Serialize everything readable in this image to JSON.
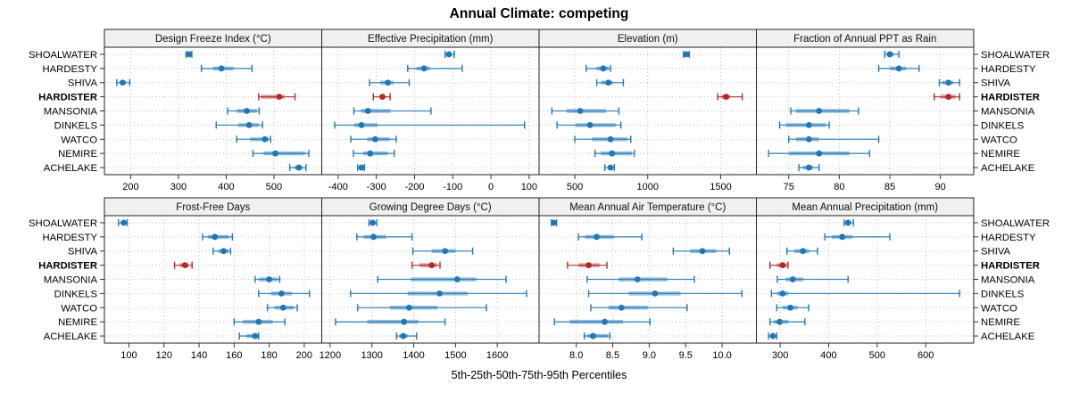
{
  "title": "Annual Climate: competing",
  "caption": "5th-25th-50th-75th-95th Percentiles",
  "sites": [
    "SHOALWATER",
    "HARDESTY",
    "SHIVA",
    "HARDISTER",
    "MANSONIA",
    "DINKELS",
    "WATCO",
    "NEMIRE",
    "ACHELAKE"
  ],
  "highlight_site": "HARDISTER",
  "colors": {
    "series_default": "#1f77b4",
    "series_highlight": "#b22822",
    "strip_bg": "#f0f0f0",
    "panel_border": "#222222",
    "grid": "#bdbdbd",
    "tick": "#333333",
    "text": "#000000"
  },
  "chart_data": {
    "type": "scatter",
    "subtype": "percentile-dotplot",
    "grid": "dotted",
    "rows": 2,
    "cols": 4,
    "percentiles": [
      "5th",
      "25th",
      "50th",
      "75th",
      "95th"
    ],
    "panels": [
      {
        "title": "Design Freeze Index (°C)",
        "xlim": [
          145,
          600
        ],
        "ticks": [
          200,
          300,
          400,
          500
        ],
        "tick_labels": [
          "200",
          "300",
          "400",
          "500"
        ],
        "values": [
          [
            316,
            320,
            322,
            325,
            328
          ],
          [
            348,
            372,
            390,
            415,
            454
          ],
          [
            171,
            178,
            183,
            190,
            198
          ],
          [
            468,
            473,
            511,
            522,
            544
          ],
          [
            403,
            422,
            443,
            464,
            469
          ],
          [
            379,
            425,
            448,
            468,
            476
          ],
          [
            422,
            450,
            481,
            489,
            493
          ],
          [
            456,
            478,
            503,
            565,
            573
          ],
          [
            533,
            543,
            552,
            560,
            567
          ]
        ]
      },
      {
        "title": "Effective Precipitation (mm)",
        "xlim": [
          -443,
          126
        ],
        "ticks": [
          -400,
          -300,
          -200,
          -100,
          0,
          100
        ],
        "tick_labels": [
          "-400",
          "-300",
          "-200",
          "-100",
          "0",
          "100"
        ],
        "values": [
          [
            -120,
            -114,
            -110,
            -104,
            -96
          ],
          [
            -218,
            -195,
            -175,
            -160,
            -75
          ],
          [
            -318,
            -290,
            -270,
            -255,
            -214
          ],
          [
            -308,
            -292,
            -284,
            -277,
            -264
          ],
          [
            -359,
            -340,
            -322,
            -263,
            -157
          ],
          [
            -409,
            -358,
            -339,
            -297,
            88
          ],
          [
            -367,
            -324,
            -303,
            -265,
            -248
          ],
          [
            -360,
            -335,
            -316,
            -270,
            -253
          ],
          [
            -349,
            -343,
            -339,
            -334,
            -331
          ]
        ]
      },
      {
        "title": "Elevation (m)",
        "xlim": [
          255,
          1745
        ],
        "ticks": [
          500,
          1000,
          1500
        ],
        "tick_labels": [
          "500",
          "1000",
          "1500"
        ],
        "values": [
          [
            1245,
            1258,
            1265,
            1272,
            1285
          ],
          [
            578,
            648,
            695,
            733,
            745
          ],
          [
            650,
            680,
            730,
            760,
            833
          ],
          [
            1480,
            1505,
            1537,
            1565,
            1648
          ],
          [
            343,
            443,
            537,
            714,
            802
          ],
          [
            378,
            505,
            604,
            780,
            816
          ],
          [
            500,
            618,
            745,
            860,
            884
          ],
          [
            639,
            680,
            755,
            890,
            908
          ],
          [
            706,
            725,
            745,
            760,
            771
          ]
        ]
      },
      {
        "title": "Fraction of Annual PPT as Rain",
        "xlim": [
          71.8,
          93.3
        ],
        "ticks": [
          75,
          80,
          85,
          90
        ],
        "tick_labels": [
          "75",
          "80",
          "85",
          "90"
        ],
        "values": [
          [
            84.5,
            84.8,
            85.0,
            85.4,
            85.9
          ],
          [
            83.9,
            85.0,
            85.9,
            86.6,
            87.9
          ],
          [
            89.9,
            90.2,
            90.8,
            91.3,
            91.9
          ],
          [
            89.4,
            90.0,
            90.8,
            91.5,
            91.9
          ],
          [
            75.2,
            75.7,
            78.0,
            81.0,
            81.9
          ],
          [
            74.1,
            74.7,
            77.0,
            78.7,
            79.0
          ],
          [
            75.0,
            75.7,
            77.0,
            78.0,
            83.9
          ],
          [
            73.0,
            75.0,
            78.0,
            81.0,
            83.0
          ],
          [
            76.0,
            76.4,
            77.0,
            77.4,
            78.0
          ]
        ]
      },
      {
        "title": "Frost-Free Days",
        "xlim": [
          86,
          210
        ],
        "ticks": [
          100,
          120,
          140,
          160,
          180,
          200
        ],
        "tick_labels": [
          "100",
          "120",
          "140",
          "160",
          "180",
          "200"
        ],
        "values": [
          [
            94,
            96,
            97,
            98,
            99
          ],
          [
            142,
            145,
            149,
            157,
            159
          ],
          [
            148,
            151,
            154,
            157,
            158
          ],
          [
            126,
            129,
            132,
            134,
            136
          ],
          [
            172,
            174,
            180,
            185,
            186
          ],
          [
            174,
            181,
            187,
            193,
            203
          ],
          [
            179,
            183,
            188,
            194,
            196
          ],
          [
            160,
            165,
            174,
            182,
            189
          ],
          [
            163,
            167,
            172,
            173,
            174
          ]
        ]
      },
      {
        "title": "Growing Degree Days (°C)",
        "xlim": [
          1180,
          1700
        ],
        "ticks": [
          1200,
          1300,
          1400,
          1500,
          1600
        ],
        "tick_labels": [
          "1200",
          "1300",
          "1400",
          "1500",
          "1600"
        ],
        "values": [
          [
            1293,
            1298,
            1302,
            1307,
            1312
          ],
          [
            1264,
            1280,
            1304,
            1334,
            1396
          ],
          [
            1398,
            1443,
            1475,
            1500,
            1541
          ],
          [
            1396,
            1414,
            1443,
            1456,
            1463
          ],
          [
            1314,
            1393,
            1504,
            1550,
            1621
          ],
          [
            1249,
            1386,
            1462,
            1529,
            1670
          ],
          [
            1266,
            1343,
            1389,
            1457,
            1574
          ],
          [
            1213,
            1289,
            1377,
            1411,
            1475
          ],
          [
            1359,
            1366,
            1375,
            1386,
            1407
          ]
        ]
      },
      {
        "title": "Mean Annual Air Temperature (°C)",
        "xlim": [
          7.49,
          10.47
        ],
        "ticks": [
          8.0,
          8.5,
          9.0,
          9.5,
          10.0
        ],
        "tick_labels": [
          "8.0",
          "8.5",
          "9.0",
          "9.5",
          "10.0"
        ],
        "values": [
          [
            7.66,
            7.68,
            7.69,
            7.71,
            7.73
          ],
          [
            8.03,
            8.12,
            8.28,
            8.52,
            8.9
          ],
          [
            9.33,
            9.56,
            9.73,
            9.92,
            10.1
          ],
          [
            7.88,
            8.03,
            8.17,
            8.32,
            8.42
          ],
          [
            8.15,
            8.58,
            8.84,
            9.25,
            9.62
          ],
          [
            8.17,
            8.72,
            9.08,
            9.43,
            10.27
          ],
          [
            8.2,
            8.44,
            8.62,
            8.98,
            9.52
          ],
          [
            7.7,
            7.91,
            8.39,
            8.64,
            9.01
          ],
          [
            8.11,
            8.15,
            8.23,
            8.43,
            8.46
          ]
        ]
      },
      {
        "title": "Mean Annual Precipitation (mm)",
        "xlim": [
          251,
          699
        ],
        "ticks": [
          300,
          400,
          500,
          600
        ],
        "tick_labels": [
          "300",
          "400",
          "500",
          "600"
        ],
        "values": [
          [
            432,
            436,
            440,
            444,
            451
          ],
          [
            392,
            406,
            428,
            449,
            526
          ],
          [
            314,
            329,
            347,
            360,
            377
          ],
          [
            279,
            293,
            305,
            313,
            316
          ],
          [
            294,
            311,
            326,
            348,
            440
          ],
          [
            282,
            293,
            305,
            317,
            670
          ],
          [
            293,
            305,
            321,
            336,
            359
          ],
          [
            279,
            287,
            299,
            317,
            351
          ],
          [
            276,
            281,
            285,
            289,
            293
          ]
        ]
      }
    ]
  }
}
